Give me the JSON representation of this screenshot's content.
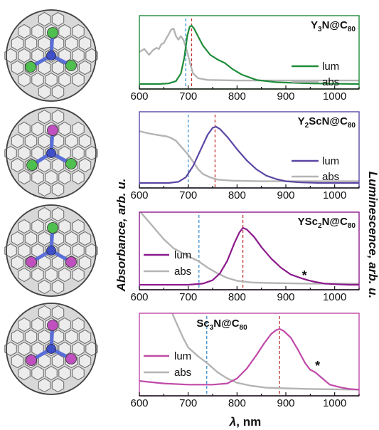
{
  "chart_data": [
    {
      "type": "line",
      "title_parts": [
        [
          "Y",
          ""
        ],
        [
          "3",
          "sub"
        ],
        [
          "N@C",
          ""
        ],
        [
          "80",
          "sub"
        ]
      ],
      "accent": "#1e8c3a",
      "xlim": [
        600,
        1050
      ],
      "xticks": [
        "600",
        "700",
        "800",
        "900",
        "1000"
      ],
      "legend": [
        "lum",
        "abs"
      ],
      "legend_pos": "right",
      "dashed_abs": 695,
      "dashed_lum": 707,
      "series": [
        {
          "name": "lum",
          "color": "#1e8c3a",
          "x": [
            600,
            640,
            660,
            675,
            685,
            692,
            698,
            703,
            707,
            712,
            720,
            730,
            745,
            760,
            775,
            790,
            810,
            840,
            880,
            950,
            1050
          ],
          "y": [
            0,
            0,
            0.01,
            0.05,
            0.18,
            0.45,
            0.82,
            0.98,
            1,
            0.95,
            0.82,
            0.66,
            0.5,
            0.42,
            0.36,
            0.26,
            0.16,
            0.07,
            0.03,
            0.01,
            0
          ]
        },
        {
          "name": "abs",
          "color": "#b4b4b4",
          "x": [
            600,
            610,
            620,
            628,
            635,
            640,
            645,
            650,
            655,
            660,
            665,
            670,
            675,
            680,
            685,
            690,
            695,
            700,
            705,
            710,
            720,
            740,
            800,
            900,
            1050
          ],
          "y": [
            0.55,
            0.6,
            0.5,
            0.58,
            0.62,
            0.6,
            0.68,
            0.7,
            0.78,
            0.85,
            0.93,
            0.95,
            0.82,
            0.76,
            0.82,
            0.76,
            0.64,
            0.48,
            0.32,
            0.18,
            0.1,
            0.07,
            0.06,
            0.06,
            0.06
          ]
        }
      ]
    },
    {
      "type": "line",
      "title_parts": [
        [
          "Y",
          ""
        ],
        [
          "2",
          "sub"
        ],
        [
          "ScN@C",
          ""
        ],
        [
          "80",
          "sub"
        ]
      ],
      "accent": "#5b46a5",
      "xlim": [
        600,
        1050
      ],
      "xticks": [
        "600",
        "700",
        "800",
        "900",
        "1000"
      ],
      "legend": [
        "lum",
        "abs"
      ],
      "legend_pos": "right",
      "dashed_abs": 700,
      "dashed_lum": 755,
      "series": [
        {
          "name": "lum",
          "color": "#5b46a5",
          "x": [
            600,
            660,
            680,
            695,
            710,
            725,
            740,
            750,
            757,
            765,
            780,
            800,
            820,
            840,
            860,
            880,
            900,
            930,
            970,
            1050
          ],
          "y": [
            0,
            0,
            0.02,
            0.1,
            0.3,
            0.58,
            0.86,
            0.98,
            1,
            0.96,
            0.82,
            0.6,
            0.4,
            0.24,
            0.13,
            0.07,
            0.03,
            0.01,
            0,
            0
          ]
        },
        {
          "name": "abs",
          "color": "#b4b4b4",
          "x": [
            600,
            620,
            640,
            655,
            665,
            675,
            680,
            690,
            700,
            710,
            720,
            730,
            745,
            760,
            790,
            850,
            950,
            1050
          ],
          "y": [
            0.92,
            0.88,
            0.85,
            0.83,
            0.8,
            0.75,
            0.7,
            0.6,
            0.5,
            0.38,
            0.25,
            0.16,
            0.1,
            0.06,
            0.04,
            0.03,
            0.03,
            0.03
          ]
        }
      ]
    },
    {
      "type": "line",
      "title_parts": [
        [
          "YSc",
          ""
        ],
        [
          "2",
          "sub"
        ],
        [
          "N@C",
          ""
        ],
        [
          "80",
          "sub"
        ]
      ],
      "accent": "#8b1a8c",
      "xlim": [
        600,
        1050
      ],
      "xticks": [
        "600",
        "700",
        "800",
        "900",
        "1000"
      ],
      "legend": [
        "lum",
        "abs"
      ],
      "legend_pos": "left",
      "dashed_abs": 722,
      "dashed_lum": 812,
      "annotation": {
        "text": "*",
        "x": 938
      },
      "series": [
        {
          "name": "lum",
          "color": "#8b1a8c",
          "x": [
            600,
            700,
            730,
            750,
            765,
            780,
            795,
            805,
            812,
            820,
            835,
            850,
            870,
            890,
            910,
            930,
            945,
            960,
            980,
            1000,
            1030,
            1050
          ],
          "y": [
            0,
            0,
            0.02,
            0.08,
            0.2,
            0.42,
            0.74,
            0.92,
            1,
            0.97,
            0.84,
            0.66,
            0.46,
            0.3,
            0.18,
            0.12,
            0.08,
            0.05,
            0.02,
            0.01,
            0,
            0
          ]
        },
        {
          "name": "abs",
          "color": "#b4b4b4",
          "x": [
            600,
            630,
            650,
            670,
            690,
            700,
            720,
            740,
            760,
            780,
            800,
            830,
            870,
            950,
            1050
          ],
          "y": [
            1.3,
            1.0,
            0.8,
            0.64,
            0.55,
            0.5,
            0.42,
            0.3,
            0.2,
            0.12,
            0.07,
            0.04,
            0.03,
            0.02,
            0.02
          ]
        }
      ]
    },
    {
      "type": "line",
      "title_parts": [
        [
          "Sc",
          ""
        ],
        [
          "3",
          "sub"
        ],
        [
          "N@C",
          ""
        ],
        [
          "80",
          "sub"
        ]
      ],
      "accent": "#c04aa8",
      "xlim": [
        600,
        1050
      ],
      "xticks": [
        "600",
        "700",
        "800",
        "900",
        "1000"
      ],
      "legend": [
        "lum",
        "abs"
      ],
      "legend_pos": "left",
      "dashed_abs": 738,
      "dashed_lum": 887,
      "annotation": {
        "text": "*",
        "x": 965
      },
      "series": [
        {
          "name": "lum",
          "color": "#c04aa8",
          "x": [
            600,
            650,
            700,
            750,
            780,
            800,
            820,
            840,
            855,
            870,
            880,
            887,
            895,
            910,
            925,
            940,
            950,
            960,
            975,
            990,
            1010,
            1030,
            1050
          ],
          "y": [
            0.16,
            0.12,
            0.1,
            0.1,
            0.12,
            0.2,
            0.36,
            0.58,
            0.76,
            0.92,
            0.98,
            1,
            0.97,
            0.86,
            0.66,
            0.44,
            0.34,
            0.3,
            0.2,
            0.1,
            0.06,
            0.03,
            0.02
          ]
        },
        {
          "name": "abs",
          "color": "#b4b4b4",
          "x": [
            600,
            640,
            670,
            690,
            700,
            720,
            740,
            760,
            780,
            800,
            830,
            860,
            900,
            950,
            1050
          ],
          "y": [
            2.4,
            1.8,
            1.2,
            0.85,
            0.7,
            0.56,
            0.44,
            0.3,
            0.2,
            0.13,
            0.08,
            0.05,
            0.04,
            0.03,
            0.02
          ]
        }
      ]
    }
  ],
  "axes": {
    "xlabel_symbol": "λ",
    "xlabel_unit": ", nm",
    "ylabel_left": "Absorbance, arb. u.",
    "ylabel_right": "Luminescence, arb. u."
  },
  "molecules": [
    {
      "atoms": [
        "#4fc04f",
        "#4fc04f",
        "#4fc04f"
      ]
    },
    {
      "atoms": [
        "#c050c0",
        "#4fc04f",
        "#4fc04f"
      ]
    },
    {
      "atoms": [
        "#4fc04f",
        "#c050c0",
        "#c050c0"
      ]
    },
    {
      "atoms": [
        "#c050c0",
        "#c050c0",
        "#c050c0"
      ]
    }
  ]
}
